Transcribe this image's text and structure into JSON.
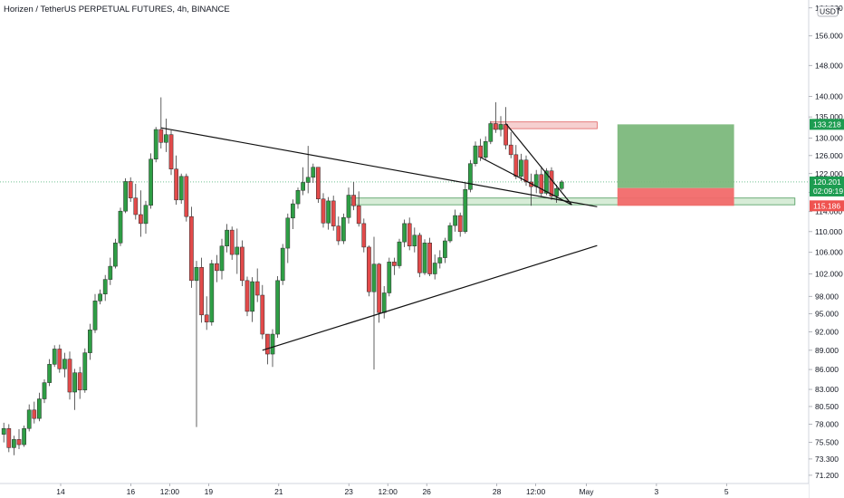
{
  "header": {
    "title": "Horizen / TetherUS PERPETUAL FUTURES, 4h, BINANCE"
  },
  "colors": {
    "up": "#2e9e45",
    "down": "#e24a4a",
    "target": "#7cb87c",
    "stop": "#f26a6a",
    "price_tag": "#1d9c51",
    "stop_tag": "#ef5350",
    "zone_green": "#d7ecd7",
    "zone_red": "#f6d0d0"
  },
  "icons": {
    "currency_badge": "usdt-badge-icon"
  },
  "chart_data": {
    "type": "candlestick",
    "currency_label": "USDT",
    "ylim": [
      70.5,
      165
    ],
    "y_ticks": [
      "164.000",
      "156.000",
      "148.000",
      "140.000",
      "135.000",
      "130.000",
      "126.000",
      "122.000",
      "118.000",
      "114.000",
      "110.000",
      "106.000",
      "102.000",
      "98.000",
      "95.000",
      "92.000",
      "89.000",
      "86.000",
      "83.000",
      "80.500",
      "78.000",
      "75.500",
      "73.300",
      "71.200"
    ],
    "x_ticks": [
      "14",
      "16",
      "12:00",
      "19",
      "21",
      "23",
      "12:00",
      "26",
      "28",
      "12:00",
      "May",
      "3",
      "5"
    ],
    "x_tick_positions": [
      0,
      18,
      28,
      38,
      56,
      74,
      84,
      94,
      112,
      122,
      135,
      153,
      171
    ],
    "price_tags": [
      {
        "label": "133.218",
        "value": 133.218,
        "kind": "target"
      },
      {
        "label": "120.201",
        "value": 120.201,
        "kind": "last"
      },
      {
        "label": "02:09:19",
        "value": 118.5,
        "kind": "timer"
      },
      {
        "label": "115.186",
        "value": 115.186,
        "kind": "stop"
      }
    ],
    "candles": [
      {
        "o": 76.6,
        "h": 78.2,
        "l": 75.5,
        "c": 77.4
      },
      {
        "o": 77.4,
        "h": 78.0,
        "l": 74.2,
        "c": 74.8
      },
      {
        "o": 74.8,
        "h": 76.4,
        "l": 73.8,
        "c": 75.9
      },
      {
        "o": 75.9,
        "h": 77.3,
        "l": 74.6,
        "c": 75.2
      },
      {
        "o": 75.2,
        "h": 77.8,
        "l": 74.9,
        "c": 77.4
      },
      {
        "o": 77.4,
        "h": 80.8,
        "l": 77.0,
        "c": 80.0
      },
      {
        "o": 80.0,
        "h": 81.2,
        "l": 78.1,
        "c": 78.8
      },
      {
        "o": 78.8,
        "h": 82.5,
        "l": 78.4,
        "c": 81.6
      },
      {
        "o": 81.6,
        "h": 84.5,
        "l": 81.0,
        "c": 84.0
      },
      {
        "o": 84.0,
        "h": 87.6,
        "l": 83.5,
        "c": 86.8
      },
      {
        "o": 86.8,
        "h": 89.8,
        "l": 86.4,
        "c": 89.2
      },
      {
        "o": 89.2,
        "h": 89.9,
        "l": 85.5,
        "c": 86.1
      },
      {
        "o": 86.1,
        "h": 88.6,
        "l": 84.8,
        "c": 87.6
      },
      {
        "o": 87.6,
        "h": 88.8,
        "l": 81.5,
        "c": 82.6
      },
      {
        "o": 82.6,
        "h": 86.1,
        "l": 80.0,
        "c": 85.5
      },
      {
        "o": 85.5,
        "h": 86.4,
        "l": 81.6,
        "c": 82.9
      },
      {
        "o": 82.9,
        "h": 89.3,
        "l": 82.5,
        "c": 88.6
      },
      {
        "o": 88.6,
        "h": 93.3,
        "l": 87.5,
        "c": 92.3
      },
      {
        "o": 92.3,
        "h": 98.4,
        "l": 91.8,
        "c": 97.2
      },
      {
        "o": 97.2,
        "h": 99.2,
        "l": 96.6,
        "c": 98.4
      },
      {
        "o": 98.4,
        "h": 101.8,
        "l": 97.2,
        "c": 101.0
      },
      {
        "o": 101.0,
        "h": 105.0,
        "l": 100.0,
        "c": 103.4
      },
      {
        "o": 103.4,
        "h": 108.6,
        "l": 103.0,
        "c": 107.8
      },
      {
        "o": 107.8,
        "h": 114.8,
        "l": 107.2,
        "c": 114.1
      },
      {
        "o": 114.1,
        "h": 121.0,
        "l": 113.7,
        "c": 120.3
      },
      {
        "o": 120.3,
        "h": 121.2,
        "l": 116.0,
        "c": 116.8
      },
      {
        "o": 116.8,
        "h": 119.8,
        "l": 112.4,
        "c": 113.4
      },
      {
        "o": 113.4,
        "h": 118.4,
        "l": 109.0,
        "c": 111.6
      },
      {
        "o": 111.6,
        "h": 116.2,
        "l": 109.6,
        "c": 115.3
      },
      {
        "o": 115.3,
        "h": 126.5,
        "l": 114.6,
        "c": 125.2
      },
      {
        "o": 125.2,
        "h": 132.6,
        "l": 124.5,
        "c": 132.0
      },
      {
        "o": 132.0,
        "h": 139.8,
        "l": 127.6,
        "c": 129.0
      },
      {
        "o": 129.0,
        "h": 134.6,
        "l": 126.8,
        "c": 130.8
      },
      {
        "o": 130.8,
        "h": 131.8,
        "l": 121.7,
        "c": 123.0
      },
      {
        "o": 123.0,
        "h": 126.0,
        "l": 115.4,
        "c": 116.4
      },
      {
        "o": 116.4,
        "h": 122.0,
        "l": 115.6,
        "c": 121.4
      },
      {
        "o": 121.4,
        "h": 122.0,
        "l": 112.0,
        "c": 113.0
      },
      {
        "o": 113.0,
        "h": 115.0,
        "l": 99.5,
        "c": 100.8
      },
      {
        "o": 100.8,
        "h": 104.4,
        "l": 77.6,
        "c": 103.2
      },
      {
        "o": 103.2,
        "h": 105.0,
        "l": 93.5,
        "c": 94.8
      },
      {
        "o": 94.8,
        "h": 98.0,
        "l": 92.3,
        "c": 93.6
      },
      {
        "o": 93.6,
        "h": 104.6,
        "l": 93.0,
        "c": 103.9
      },
      {
        "o": 103.9,
        "h": 105.5,
        "l": 100.5,
        "c": 102.6
      },
      {
        "o": 102.6,
        "h": 108.6,
        "l": 101.0,
        "c": 107.2
      },
      {
        "o": 107.2,
        "h": 111.5,
        "l": 106.0,
        "c": 110.3
      },
      {
        "o": 110.3,
        "h": 111.0,
        "l": 104.6,
        "c": 105.6
      },
      {
        "o": 105.6,
        "h": 110.6,
        "l": 102.0,
        "c": 107.0
      },
      {
        "o": 107.0,
        "h": 108.3,
        "l": 99.8,
        "c": 100.8
      },
      {
        "o": 100.8,
        "h": 101.5,
        "l": 94.6,
        "c": 95.4
      },
      {
        "o": 95.4,
        "h": 101.4,
        "l": 93.6,
        "c": 100.6
      },
      {
        "o": 100.6,
        "h": 103.0,
        "l": 97.0,
        "c": 98.2
      },
      {
        "o": 98.2,
        "h": 100.0,
        "l": 90.8,
        "c": 91.6
      },
      {
        "o": 91.6,
        "h": 91.6,
        "l": 86.8,
        "c": 88.4
      },
      {
        "o": 88.4,
        "h": 92.4,
        "l": 86.4,
        "c": 91.6
      },
      {
        "o": 91.6,
        "h": 101.6,
        "l": 91.0,
        "c": 100.8
      },
      {
        "o": 100.8,
        "h": 107.6,
        "l": 100.0,
        "c": 106.8
      },
      {
        "o": 106.8,
        "h": 113.6,
        "l": 104.0,
        "c": 112.7
      },
      {
        "o": 112.7,
        "h": 116.5,
        "l": 110.5,
        "c": 115.6
      },
      {
        "o": 115.6,
        "h": 119.0,
        "l": 114.6,
        "c": 118.4
      },
      {
        "o": 118.4,
        "h": 123.4,
        "l": 117.4,
        "c": 120.1
      },
      {
        "o": 120.1,
        "h": 128.2,
        "l": 117.8,
        "c": 121.2
      },
      {
        "o": 121.2,
        "h": 124.2,
        "l": 120.0,
        "c": 123.4
      },
      {
        "o": 123.4,
        "h": 123.4,
        "l": 115.8,
        "c": 116.6
      },
      {
        "o": 116.6,
        "h": 117.8,
        "l": 110.8,
        "c": 111.7
      },
      {
        "o": 111.7,
        "h": 117.0,
        "l": 110.4,
        "c": 116.2
      },
      {
        "o": 116.2,
        "h": 117.3,
        "l": 110.2,
        "c": 111.1
      },
      {
        "o": 111.1,
        "h": 113.0,
        "l": 107.4,
        "c": 108.2
      },
      {
        "o": 108.2,
        "h": 113.6,
        "l": 107.6,
        "c": 112.8
      },
      {
        "o": 112.8,
        "h": 119.0,
        "l": 111.6,
        "c": 117.4
      },
      {
        "o": 117.4,
        "h": 120.2,
        "l": 114.3,
        "c": 115.2
      },
      {
        "o": 115.2,
        "h": 118.2,
        "l": 111.0,
        "c": 111.6
      },
      {
        "o": 111.6,
        "h": 112.6,
        "l": 106.0,
        "c": 107.0
      },
      {
        "o": 107.0,
        "h": 107.3,
        "l": 98.0,
        "c": 98.8
      },
      {
        "o": 98.8,
        "h": 109.0,
        "l": 86.0,
        "c": 103.8
      },
      {
        "o": 103.8,
        "h": 104.0,
        "l": 93.5,
        "c": 95.2
      },
      {
        "o": 95.2,
        "h": 99.8,
        "l": 94.2,
        "c": 98.6
      },
      {
        "o": 98.6,
        "h": 105.0,
        "l": 98.0,
        "c": 104.2
      },
      {
        "o": 104.2,
        "h": 105.0,
        "l": 101.8,
        "c": 103.5
      },
      {
        "o": 103.5,
        "h": 108.6,
        "l": 103.0,
        "c": 108.0
      },
      {
        "o": 108.0,
        "h": 112.4,
        "l": 107.0,
        "c": 111.6
      },
      {
        "o": 111.6,
        "h": 112.8,
        "l": 106.4,
        "c": 107.2
      },
      {
        "o": 107.2,
        "h": 110.8,
        "l": 106.0,
        "c": 109.3
      },
      {
        "o": 109.3,
        "h": 109.8,
        "l": 101.4,
        "c": 102.2
      },
      {
        "o": 102.2,
        "h": 108.5,
        "l": 101.8,
        "c": 107.8
      },
      {
        "o": 107.8,
        "h": 108.8,
        "l": 101.6,
        "c": 102.0
      },
      {
        "o": 102.0,
        "h": 105.6,
        "l": 101.0,
        "c": 104.0
      },
      {
        "o": 104.0,
        "h": 106.4,
        "l": 103.0,
        "c": 105.0
      },
      {
        "o": 105.0,
        "h": 108.8,
        "l": 104.0,
        "c": 108.2
      },
      {
        "o": 108.2,
        "h": 111.8,
        "l": 107.8,
        "c": 111.2
      },
      {
        "o": 111.2,
        "h": 114.4,
        "l": 110.0,
        "c": 113.2
      },
      {
        "o": 113.2,
        "h": 113.8,
        "l": 109.0,
        "c": 110.0
      },
      {
        "o": 110.0,
        "h": 120.0,
        "l": 109.6,
        "c": 118.6
      },
      {
        "o": 118.6,
        "h": 125.0,
        "l": 118.0,
        "c": 124.2
      },
      {
        "o": 124.2,
        "h": 129.2,
        "l": 123.6,
        "c": 128.2
      },
      {
        "o": 128.2,
        "h": 129.8,
        "l": 124.8,
        "c": 125.6
      },
      {
        "o": 125.6,
        "h": 130.4,
        "l": 125.0,
        "c": 129.2
      },
      {
        "o": 129.2,
        "h": 134.0,
        "l": 128.6,
        "c": 133.4
      },
      {
        "o": 133.4,
        "h": 138.6,
        "l": 131.2,
        "c": 132.0
      },
      {
        "o": 132.0,
        "h": 135.2,
        "l": 130.4,
        "c": 133.2
      },
      {
        "o": 133.2,
        "h": 137.4,
        "l": 127.4,
        "c": 128.4
      },
      {
        "o": 128.4,
        "h": 131.4,
        "l": 125.4,
        "c": 126.2
      },
      {
        "o": 126.2,
        "h": 128.4,
        "l": 120.8,
        "c": 121.4
      },
      {
        "o": 121.4,
        "h": 126.4,
        "l": 120.4,
        "c": 125.0
      },
      {
        "o": 125.0,
        "h": 126.0,
        "l": 119.4,
        "c": 120.2
      },
      {
        "o": 120.2,
        "h": 122.0,
        "l": 115.2,
        "c": 119.2
      },
      {
        "o": 119.2,
        "h": 122.8,
        "l": 117.8,
        "c": 121.8
      },
      {
        "o": 121.8,
        "h": 123.6,
        "l": 117.0,
        "c": 117.8
      },
      {
        "o": 117.8,
        "h": 123.2,
        "l": 117.4,
        "c": 122.6
      },
      {
        "o": 122.6,
        "h": 123.4,
        "l": 116.4,
        "c": 117.2
      },
      {
        "o": 117.2,
        "h": 119.6,
        "l": 115.8,
        "c": 118.8
      },
      {
        "o": 118.8,
        "h": 120.6,
        "l": 118.4,
        "c": 120.2
      }
    ],
    "trendlines": [
      {
        "x1": 31,
        "y1": 132.4,
        "x2": 117,
        "y2": 115.0
      },
      {
        "x1": 51,
        "y1": 89.0,
        "x2": 117,
        "y2": 107.3
      },
      {
        "x1": 94,
        "y1": 125.6,
        "x2": 112,
        "y2": 115.4
      },
      {
        "x1": 99,
        "y1": 133.4,
        "x2": 112,
        "y2": 115.4
      }
    ],
    "zones": [
      {
        "kind": "resistance",
        "x1": 96,
        "x2": 117,
        "y1": 132.2,
        "y2": 133.8
      },
      {
        "kind": "support",
        "x1": 68,
        "x2": 156,
        "y1": 115.4,
        "y2": 116.8
      }
    ],
    "long_position": {
      "x1": 121,
      "x2": 144,
      "entry": 118.9,
      "target": 133.218,
      "stop": 115.186
    }
  }
}
